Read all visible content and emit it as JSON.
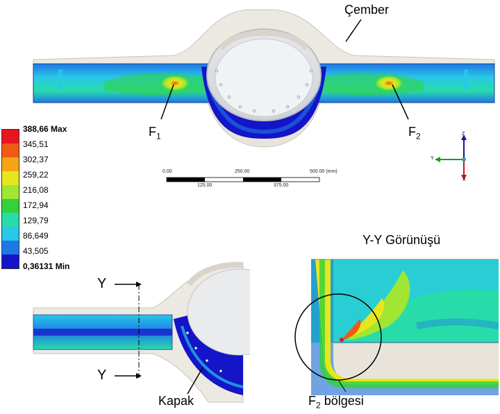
{
  "labels": {
    "cember": "Çember",
    "f1_letter": "F",
    "f1_sub": "1",
    "f2_letter": "F",
    "f2_sub": "2",
    "yy_title": "Y-Y Görünüşü",
    "y_top": "Y",
    "y_bottom": "Y",
    "kapak": "Kapak",
    "f2_region_letter": "F",
    "f2_region_sub": "2",
    "f2_region_word": " bölgesi"
  },
  "legend": {
    "items": [
      {
        "label": "388,66 Max",
        "color": "#e8141e",
        "bold": true
      },
      {
        "label": "345,51",
        "color": "#f05a14",
        "bold": false
      },
      {
        "label": "302,37",
        "color": "#f5a514",
        "bold": false
      },
      {
        "label": "259,22",
        "color": "#e6e61e",
        "bold": false
      },
      {
        "label": "216,08",
        "color": "#a0e632",
        "bold": false
      },
      {
        "label": "172,94",
        "color": "#32d23c",
        "bold": false
      },
      {
        "label": "129,79",
        "color": "#28dcaa",
        "bold": false
      },
      {
        "label": "86,649",
        "color": "#28c8e6",
        "bold": false
      },
      {
        "label": "43,505",
        "color": "#1e78e6",
        "bold": false
      },
      {
        "label": "0,36131 Min",
        "color": "#1414c8",
        "bold": true
      }
    ]
  },
  "scale_bar": {
    "top_ticks": [
      "0.00",
      "250.00",
      "500.00 (mm)"
    ],
    "bottom_ticks": [
      "125.00",
      "375.00"
    ]
  },
  "triad": {
    "z": "Z",
    "y": "Y",
    "x": "X"
  },
  "colors": {
    "housing": "#ece9e2",
    "min_blue": "#1414c8",
    "mid_blue": "#1e78e6",
    "cyan": "#28c8e6",
    "teal": "#28dcaa",
    "green": "#32d23c",
    "yellow": "#e6e61e",
    "red": "#e8141e"
  }
}
